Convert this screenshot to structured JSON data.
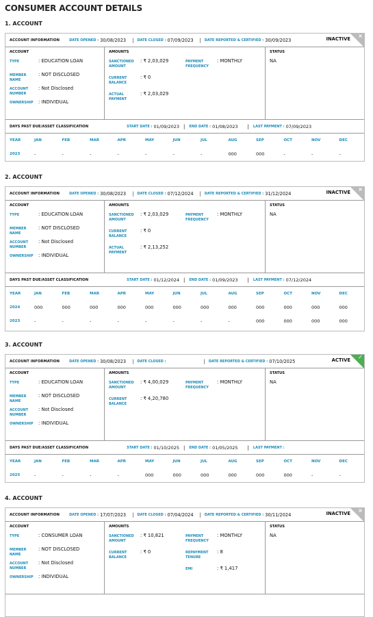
{
  "page_title": "CONSUMER ACCOUNT DETAILS",
  "labels": {
    "account_information": "ACCOUNT INFORMATION",
    "date_opened": "DATE OPENED :",
    "date_closed": "DATE CLOSED :",
    "date_reported": "DATE REPORTED & CERTIFIED :",
    "account": "ACCOUNT",
    "amounts": "AMOUNTS",
    "status": "STATUS",
    "type": "TYPE",
    "member_name": "MEMBER NAME",
    "account_number": "ACCOUNT NUMBER",
    "ownership": "OWNERSHIP",
    "sanctioned_amount": "SANCTIONED AMOUNT",
    "current_balance": "CURRENT BALANCE",
    "actual_payment": "ACTUAL PAYMENT",
    "payment_frequency": "PAYMENT FREQUENCY",
    "repayment_tenure": "REPAYMENT TENURE",
    "emi": "EMI",
    "dpd": "DAYS PAST DUE/ASSET CLASSIFICATION",
    "start_date": "START DATE :",
    "end_date": "END DATE :",
    "last_payment": "LAST PAYMENT :",
    "year": "YEAR",
    "months": [
      "JAN",
      "FEB",
      "MAR",
      "APR",
      "MAY",
      "JUN",
      "JUL",
      "AUG",
      "SEP",
      "OCT",
      "NOV",
      "DEC"
    ]
  },
  "accounts": [
    {
      "title": "1. ACCOUNT",
      "date_opened": "30/08/2023",
      "date_closed": "07/09/2023",
      "date_reported": "30/09/2023",
      "status_tag": "INACTIVE",
      "type": ": EDUCATION LOAN",
      "member_name": ": NOT DISCLOSED",
      "account_number": ": Not Disclosed",
      "ownership": ": INDIVIDUAL",
      "sanctioned": ": ₹ 2,03,029",
      "current_balance": ": ₹ 0",
      "actual_payment": ": ₹ 2,03,029",
      "payment_frequency": ": MONTHLY",
      "status": "NA",
      "start_date": "01/09/2023",
      "end_date": "01/08/2023",
      "last_payment": "07/09/2023",
      "years": [
        {
          "year": "2023",
          "m": [
            "-",
            "-",
            "-",
            "-",
            "-",
            "-",
            "-",
            "000",
            "000",
            "-",
            "-",
            "-"
          ]
        }
      ]
    },
    {
      "title": "2. ACCOUNT",
      "date_opened": "30/08/2023",
      "date_closed": "07/12/2024",
      "date_reported": "31/12/2024",
      "status_tag": "INACTIVE",
      "type": ": EDUCATION LOAN",
      "member_name": ": NOT DISCLOSED",
      "account_number": ": Not Disclosed",
      "ownership": ": INDIVIDUAL",
      "sanctioned": ": ₹ 2,03,029",
      "current_balance": ": ₹ 0",
      "actual_payment": ": ₹ 2,13,252",
      "payment_frequency": ": MONTHLY",
      "status": "NA",
      "start_date": "01/12/2024",
      "end_date": "01/09/2023",
      "last_payment": "07/12/2024",
      "years": [
        {
          "year": "2024",
          "m": [
            "000",
            "000",
            "000",
            "000",
            "000",
            "000",
            "000",
            "000",
            "000",
            "000",
            "000",
            "000"
          ]
        },
        {
          "year": "2023",
          "m": [
            "-",
            "-",
            "-",
            "-",
            "-",
            "-",
            "-",
            "-",
            "000",
            "000",
            "000",
            "000"
          ]
        }
      ]
    },
    {
      "title": "3. ACCOUNT",
      "date_opened": "30/08/2023",
      "date_closed": "",
      "date_reported": "07/10/2025",
      "status_tag": "ACTIVE",
      "type": ": EDUCATION LOAN",
      "member_name": ": NOT DISCLOSED",
      "account_number": ": Not Disclosed",
      "ownership": ": INDIVIDUAL",
      "sanctioned": ": ₹ 4,00,029",
      "current_balance": ": ₹ 4,20,780",
      "payment_frequency": ": MONTHLY",
      "status": "NA",
      "start_date": "01/10/2025",
      "end_date": "01/05/2025",
      "last_payment": "",
      "years": [
        {
          "year": "2025",
          "m": [
            "-",
            "-",
            "-",
            "-",
            "000",
            "000",
            "000",
            "000",
            "000",
            "000",
            "-",
            "-"
          ]
        }
      ]
    },
    {
      "title": "4. ACCOUNT",
      "date_opened": "17/07/2023",
      "date_closed": "07/04/2024",
      "date_reported": "30/11/2024",
      "status_tag": "INACTIVE",
      "type": ": CONSUMER LOAN",
      "member_name": ": NOT DISCLOSED",
      "account_number": ": Not Disclosed",
      "ownership": ": INDIVIDUAL",
      "sanctioned": ": ₹ 10,821",
      "current_balance": ": ₹ 0",
      "payment_frequency": ": MONTHLY",
      "repayment_tenure": ": 8",
      "emi": ": ₹ 1,417",
      "status": "NA"
    }
  ]
}
